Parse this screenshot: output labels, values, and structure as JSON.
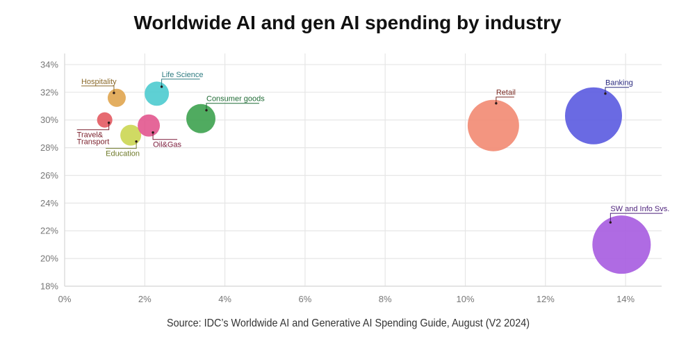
{
  "chart_data": {
    "type": "scatter",
    "variant": "bubble",
    "title": "Worldwide AI and gen AI spending by industry",
    "source": "Source: IDC’s Worldwide AI and Generative AI Spending Guide, August (V2 2024)",
    "xlabel": "",
    "ylabel": "",
    "xlim": [
      0,
      14.9
    ],
    "ylim": [
      18,
      34.8
    ],
    "grid": true,
    "legend": "none",
    "x_ticks": [
      {
        "value": 0,
        "label": "0%"
      },
      {
        "value": 2,
        "label": "2%"
      },
      {
        "value": 4,
        "label": "4%"
      },
      {
        "value": 6,
        "label": "6%"
      },
      {
        "value": 8,
        "label": "8%"
      },
      {
        "value": 10,
        "label": "10%"
      },
      {
        "value": 12,
        "label": "12%"
      },
      {
        "value": 14,
        "label": "14%"
      }
    ],
    "y_ticks": [
      {
        "value": 18,
        "label": "18%"
      },
      {
        "value": 20,
        "label": "20%"
      },
      {
        "value": 22,
        "label": "22%"
      },
      {
        "value": 24,
        "label": "24%"
      },
      {
        "value": 26,
        "label": "26%"
      },
      {
        "value": 28,
        "label": "28%"
      },
      {
        "value": 30,
        "label": "30%"
      },
      {
        "value": 32,
        "label": "32%"
      },
      {
        "value": 34,
        "label": "34%"
      }
    ],
    "points": [
      {
        "name": "Travel & Transport",
        "label_lines": [
          "Travel&",
          "Transport"
        ],
        "x": 1.0,
        "y": 30.0,
        "relative_size": 6.9,
        "color": "#e35a62",
        "label_color": "#7a1f2b"
      },
      {
        "name": "Hospitality",
        "label_lines": [
          "Hospitality"
        ],
        "x": 1.3,
        "y": 31.6,
        "relative_size": 9.6,
        "color": "#e0a54f",
        "label_color": "#8b6a2b"
      },
      {
        "name": "Education",
        "label_lines": [
          "Education"
        ],
        "x": 1.65,
        "y": 28.9,
        "relative_size": 12.8,
        "color": "#cbd652",
        "label_color": "#6f7a2a"
      },
      {
        "name": "Oil&Gas",
        "label_lines": [
          "Oil&Gas"
        ],
        "x": 2.1,
        "y": 29.6,
        "relative_size": 14.5,
        "color": "#e2568e",
        "label_color": "#7b1a3a"
      },
      {
        "name": "Life Science",
        "label_lines": [
          "Life Science"
        ],
        "x": 2.3,
        "y": 31.9,
        "relative_size": 17.3,
        "color": "#4dcbcf",
        "label_color": "#2e7b80"
      },
      {
        "name": "Consumer goods",
        "label_lines": [
          "Consumer goods"
        ],
        "x": 3.4,
        "y": 30.1,
        "relative_size": 25.0,
        "color": "#3da24f",
        "label_color": "#1f6b35"
      },
      {
        "name": "Retail",
        "label_lines": [
          "Retail"
        ],
        "x": 10.7,
        "y": 29.6,
        "relative_size": 77.6,
        "color": "#f28a72",
        "label_color": "#7a2a22"
      },
      {
        "name": "Banking",
        "label_lines": [
          "Banking"
        ],
        "x": 13.2,
        "y": 30.3,
        "relative_size": 95.3,
        "color": "#5a5ae0",
        "label_color": "#2c2c80"
      },
      {
        "name": "SW and Info Svs.",
        "label_lines": [
          "SW and Info Svs."
        ],
        "x": 13.9,
        "y": 21.0,
        "relative_size": 100,
        "color": "#a65be0",
        "label_color": "#4b1f7a"
      }
    ]
  }
}
